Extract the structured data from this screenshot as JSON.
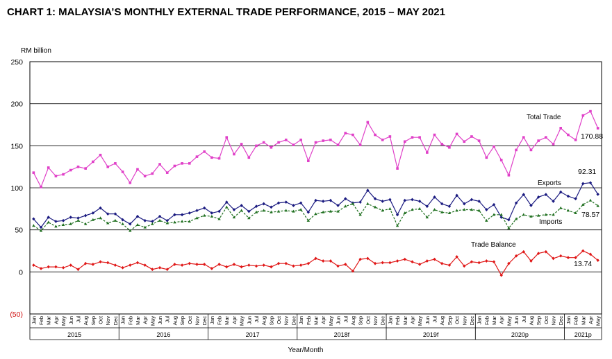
{
  "chart_data": {
    "type": "line",
    "title": "CHART 1: MALAYSIA’S MONTHLY EXTERNAL TRADE PERFORMANCE, 2015 – MAY 2021",
    "ylabel": "RM billion",
    "xlabel": "Year/Month",
    "ylim": [
      -50,
      250
    ],
    "yticks": [
      250,
      200,
      150,
      100,
      50,
      0,
      -50
    ],
    "ytick_labels": [
      "250",
      "200",
      "150",
      "100",
      "50",
      "0",
      "(50)"
    ],
    "grid": true,
    "month_labels": [
      "Jan",
      "Feb",
      "Mar",
      "Apr",
      "May",
      "Jun",
      "Jul",
      "Aug",
      "Sep",
      "Oct",
      "Nov",
      "Dec"
    ],
    "last_year_month_labels": [
      "Jan",
      "Feb",
      "Mar",
      "Apr",
      "May"
    ],
    "year_labels": [
      "2015",
      "2016",
      "2017",
      "2018f",
      "2019f",
      "2020p",
      "2021p"
    ],
    "series": [
      {
        "name": "Total Trade",
        "color": "#e040c8",
        "marker": "square",
        "end_label": "170.88",
        "values": [
          118,
          101,
          124,
          114,
          116,
          121,
          125,
          123,
          131,
          139,
          125,
          129,
          119,
          106,
          122,
          114,
          117,
          128,
          118,
          126,
          129,
          129,
          137,
          143,
          136,
          135,
          160,
          140,
          152,
          136,
          150,
          154,
          148,
          154,
          157,
          151,
          157,
          132,
          154,
          156,
          157,
          151,
          165,
          163,
          151,
          178,
          163,
          157,
          161,
          123,
          155,
          160,
          160,
          142,
          163,
          152,
          148,
          164,
          155,
          161,
          156,
          136,
          149,
          133,
          115,
          145,
          160,
          145,
          156,
          160,
          152,
          171,
          163,
          157,
          186,
          191,
          170.88
        ]
      },
      {
        "name": "Exports",
        "color": "#1a1a80",
        "marker": "diamond",
        "end_label": "92.31",
        "values": [
          63,
          53,
          65,
          60,
          61,
          65,
          64,
          67,
          70,
          76,
          69,
          69,
          62,
          57,
          66,
          61,
          60,
          66,
          61,
          68,
          68,
          70,
          73,
          76,
          70,
          72,
          83,
          74,
          79,
          72,
          78,
          81,
          77,
          82,
          83,
          79,
          82,
          71,
          85,
          84,
          85,
          79,
          87,
          82,
          83,
          97,
          87,
          84,
          86,
          68,
          85,
          86,
          84,
          78,
          89,
          81,
          78,
          91,
          81,
          86,
          84,
          74,
          80,
          65,
          62,
          82,
          92,
          79,
          89,
          92,
          84,
          95,
          90,
          87,
          105,
          106,
          92.31
        ]
      },
      {
        "name": "Imports",
        "color": "#207020",
        "marker": "triangle",
        "dashed": true,
        "end_label": "78.57",
        "values": [
          55,
          49,
          59,
          54,
          56,
          57,
          61,
          57,
          62,
          64,
          58,
          61,
          57,
          49,
          56,
          53,
          57,
          61,
          58,
          59,
          60,
          60,
          64,
          67,
          66,
          63,
          77,
          65,
          73,
          64,
          71,
          73,
          71,
          72,
          73,
          72,
          74,
          61,
          69,
          71,
          72,
          72,
          78,
          81,
          68,
          81,
          77,
          73,
          75,
          55,
          70,
          74,
          75,
          65,
          74,
          71,
          70,
          73,
          74,
          74,
          73,
          61,
          68,
          68,
          52,
          63,
          68,
          66,
          67,
          68,
          68,
          76,
          73,
          70,
          80,
          85,
          78.57
        ]
      },
      {
        "name": "Trade Balance",
        "color": "#e01818",
        "marker": "diamond",
        "end_label": "13.74",
        "values": [
          8,
          4,
          6,
          6,
          5,
          8,
          3,
          10,
          9,
          12,
          11,
          8,
          5,
          8,
          11,
          8,
          3,
          5,
          3,
          9,
          8,
          10,
          9,
          9,
          4,
          9,
          6,
          9,
          6,
          8,
          7,
          8,
          6,
          10,
          10,
          7,
          8,
          10,
          16,
          13,
          13,
          7,
          9,
          1,
          15,
          16,
          10,
          11,
          11,
          13,
          15,
          12,
          9,
          13,
          15,
          10,
          8,
          18,
          7,
          12,
          11,
          13,
          12,
          -4,
          10,
          19,
          24,
          13,
          22,
          24,
          16,
          19,
          17,
          17,
          25,
          21,
          13.74
        ]
      }
    ]
  }
}
